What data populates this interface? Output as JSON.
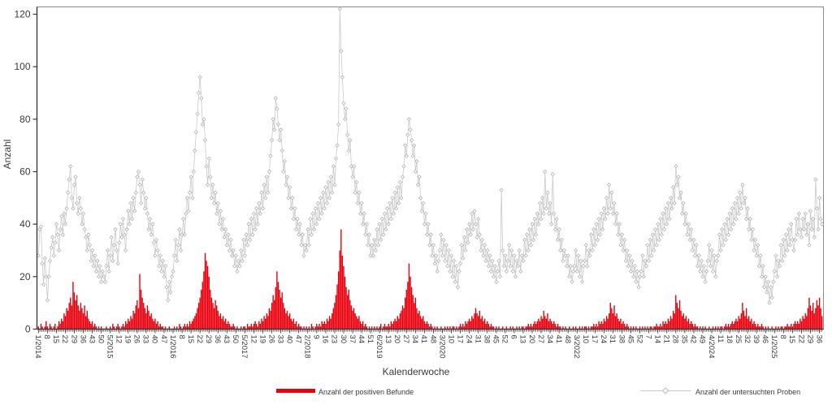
{
  "y_axis": {
    "label": "Anzahl",
    "ticks": [
      0,
      20,
      40,
      60,
      80,
      100,
      120
    ]
  },
  "x_axis": {
    "label": "Kalenderwoche",
    "label_every_n_weeks": 7,
    "labels": [
      "1/2014",
      "8",
      "15",
      "22",
      "29",
      "36",
      "43",
      "50",
      "5/2015",
      "12",
      "19",
      "26",
      "33",
      "40",
      "47",
      "1/2016",
      "8",
      "15",
      "22",
      "29",
      "36",
      "43",
      "50",
      "5/2017",
      "12",
      "19",
      "26",
      "33",
      "40",
      "47",
      "2/2018",
      "9",
      "16",
      "23",
      "30",
      "37",
      "44",
      "51",
      "6/2019",
      "13",
      "20",
      "27",
      "34",
      "41",
      "48",
      "3/2020",
      "10",
      "17",
      "24",
      "31",
      "38",
      "45",
      "52",
      "6",
      "13",
      "20",
      "27",
      "34",
      "41",
      "48",
      "3/2022",
      "10",
      "17",
      "24",
      "31",
      "38",
      "45",
      "52",
      "7",
      "14",
      "21",
      "28",
      "35",
      "42",
      "49",
      "4/2024",
      "11",
      "18",
      "25",
      "32",
      "39",
      "46",
      "1/2025",
      "8",
      "15",
      "22",
      "29",
      "36"
    ]
  },
  "legend": {
    "positive": {
      "label": "Anzahl der positiven Befunde"
    },
    "samples": {
      "label": "Anzahl der untersuchten Proben"
    }
  },
  "colors": {
    "bar": "#e8000d",
    "line": "#c9c9c9",
    "marker_stroke": "#ababab",
    "marker_fill": "#ffffff",
    "axis": "#3a3a3a",
    "frame": "#8a8a8a",
    "text": "#3a3a3a"
  },
  "chart_data": {
    "type": "bar+line",
    "x_unit": "Kalenderwoche (weekly), 1/2014 to 38/2025",
    "n_weeks": 612,
    "ylim": [
      0,
      123
    ],
    "grid": false,
    "legend_position": "bottom",
    "series": [
      {
        "name": "Anzahl der positiven Befunde",
        "type": "bar",
        "color": "#e8000d",
        "values": [
          1,
          0,
          2,
          1,
          0,
          1,
          3,
          1,
          0,
          2,
          1,
          0,
          1,
          2,
          0,
          1,
          3,
          2,
          4,
          3,
          6,
          5,
          8,
          7,
          10,
          12,
          9,
          18,
          14,
          11,
          13,
          9,
          7,
          10,
          8,
          6,
          9,
          5,
          7,
          4,
          3,
          2,
          3,
          1,
          2,
          1,
          0,
          1,
          0,
          1,
          0,
          0,
          0,
          1,
          0,
          0,
          1,
          0,
          2,
          1,
          0,
          1,
          2,
          1,
          0,
          1,
          2,
          1,
          3,
          2,
          4,
          3,
          5,
          4,
          7,
          6,
          9,
          11,
          8,
          21,
          15,
          12,
          10,
          8,
          6,
          9,
          7,
          5,
          6,
          4,
          3,
          4,
          2,
          3,
          1,
          2,
          1,
          1,
          0,
          1,
          0,
          0,
          1,
          0,
          0,
          0,
          1,
          0,
          1,
          0,
          2,
          1,
          0,
          1,
          2,
          1,
          2,
          1,
          3,
          2,
          3,
          4,
          5,
          6,
          8,
          10,
          12,
          15,
          18,
          22,
          29,
          26,
          24,
          20,
          15,
          12,
          10,
          8,
          11,
          9,
          7,
          5,
          6,
          4,
          5,
          3,
          4,
          2,
          3,
          2,
          1,
          1,
          2,
          1,
          0,
          1,
          0,
          0,
          1,
          0,
          1,
          1,
          0,
          2,
          1,
          1,
          2,
          1,
          2,
          3,
          2,
          1,
          3,
          2,
          4,
          3,
          5,
          4,
          6,
          5,
          8,
          7,
          10,
          13,
          11,
          16,
          22,
          18,
          15,
          12,
          14,
          10,
          8,
          6,
          7,
          5,
          6,
          4,
          3,
          4,
          2,
          3,
          1,
          2,
          1,
          1,
          0,
          1,
          0,
          1,
          0,
          1,
          0,
          2,
          1,
          0,
          1,
          2,
          1,
          2,
          1,
          3,
          2,
          3,
          2,
          4,
          3,
          5,
          4,
          6,
          8,
          10,
          13,
          17,
          22,
          30,
          38,
          28,
          24,
          20,
          16,
          13,
          15,
          11,
          9,
          7,
          8,
          6,
          5,
          4,
          5,
          3,
          2,
          3,
          1,
          2,
          1,
          0,
          1,
          0,
          1,
          0,
          1,
          0,
          1,
          0,
          1,
          2,
          0,
          1,
          2,
          1,
          1,
          2,
          1,
          3,
          2,
          3,
          4,
          3,
          5,
          4,
          6,
          7,
          9,
          8,
          12,
          15,
          18,
          25,
          20,
          16,
          13,
          10,
          12,
          8,
          6,
          7,
          5,
          4,
          5,
          3,
          2,
          3,
          2,
          1,
          2,
          1,
          0,
          1,
          0,
          1,
          0,
          0,
          1,
          0,
          0,
          1,
          0,
          1,
          0,
          1,
          0,
          1,
          1,
          0,
          1,
          0,
          1,
          2,
          1,
          2,
          1,
          3,
          2,
          3,
          4,
          3,
          5,
          4,
          6,
          8,
          6,
          5,
          7,
          4,
          5,
          3,
          4,
          2,
          3,
          2,
          1,
          2,
          1,
          1,
          0,
          1,
          0,
          1,
          0,
          0,
          1,
          0,
          0,
          1,
          0,
          0,
          1,
          0,
          1,
          0,
          0,
          1,
          0,
          1,
          0,
          1,
          1,
          0,
          1,
          1,
          2,
          1,
          2,
          1,
          2,
          3,
          2,
          3,
          4,
          3,
          5,
          4,
          7,
          5,
          4,
          6,
          3,
          4,
          3,
          2,
          3,
          2,
          1,
          2,
          1,
          1,
          0,
          1,
          0,
          1,
          0,
          0,
          1,
          0,
          0,
          1,
          0,
          1,
          0,
          0,
          1,
          0,
          1,
          0,
          1,
          1,
          0,
          1,
          0,
          1,
          1,
          2,
          1,
          2,
          1,
          3,
          2,
          3,
          2,
          4,
          3,
          5,
          4,
          6,
          10,
          8,
          6,
          9,
          5,
          6,
          4,
          3,
          4,
          2,
          3,
          2,
          1,
          2,
          1,
          0,
          1,
          0,
          1,
          0,
          1,
          0,
          0,
          1,
          0,
          1,
          0,
          1,
          0,
          1,
          0,
          1,
          1,
          0,
          1,
          1,
          2,
          1,
          1,
          2,
          1,
          3,
          2,
          3,
          2,
          4,
          3,
          5,
          4,
          7,
          6,
          13,
          10,
          8,
          11,
          7,
          5,
          6,
          4,
          5,
          3,
          4,
          2,
          3,
          2,
          1,
          2,
          1,
          1,
          0,
          1,
          0,
          1,
          0,
          1,
          0,
          0,
          1,
          0,
          0,
          1,
          0,
          1,
          0,
          1,
          0,
          1,
          1,
          0,
          1,
          2,
          1,
          2,
          1,
          2,
          3,
          2,
          3,
          4,
          3,
          5,
          4,
          6,
          10,
          7,
          5,
          8,
          4,
          5,
          3,
          4,
          2,
          3,
          2,
          1,
          2,
          1,
          1,
          2,
          1,
          0,
          1,
          0,
          1,
          0,
          0,
          1,
          0,
          0,
          1,
          0,
          1,
          0,
          1,
          1,
          0,
          1,
          1,
          2,
          1,
          1,
          2,
          1,
          2,
          3,
          2,
          3,
          2,
          4,
          3,
          5,
          4,
          6,
          5,
          8,
          12,
          9,
          7,
          10,
          6,
          8,
          11,
          9,
          12,
          8,
          5
        ]
      },
      {
        "name": "Anzahl der untersuchten Proben",
        "type": "line",
        "marker": "diamond",
        "color": "#c9c9c9",
        "values": [
          28,
          38,
          39,
          25,
          17,
          27,
          20,
          11,
          20,
          26,
          31,
          35,
          28,
          33,
          40,
          36,
          30,
          38,
          43,
          36,
          44,
          40,
          46,
          52,
          57,
          62,
          50,
          46,
          55,
          58,
          48,
          44,
          50,
          46,
          40,
          44,
          38,
          35,
          30,
          36,
          32,
          26,
          30,
          24,
          28,
          22,
          26,
          20,
          24,
          18,
          22,
          20,
          18,
          24,
          30,
          22,
          28,
          35,
          26,
          32,
          38,
          30,
          25,
          33,
          40,
          35,
          42,
          36,
          30,
          38,
          45,
          40,
          48,
          42,
          50,
          45,
          52,
          58,
          60,
          55,
          48,
          57,
          52,
          46,
          50,
          44,
          38,
          42,
          36,
          40,
          33,
          28,
          34,
          30,
          24,
          28,
          22,
          26,
          20,
          24,
          16,
          11,
          18,
          14,
          20,
          22,
          28,
          34,
          26,
          32,
          38,
          30,
          36,
          42,
          36,
          44,
          50,
          45,
          52,
          58,
          50,
          60,
          68,
          75,
          82,
          90,
          96,
          88,
          78,
          80,
          72,
          62,
          55,
          65,
          58,
          50,
          55,
          48,
          52,
          44,
          48,
          40,
          45,
          38,
          42,
          35,
          38,
          32,
          36,
          30,
          34,
          28,
          30,
          24,
          28,
          22,
          26,
          24,
          30,
          26,
          34,
          28,
          36,
          32,
          40,
          34,
          42,
          36,
          44,
          38,
          46,
          40,
          48,
          44,
          52,
          46,
          55,
          50,
          58,
          52,
          60,
          66,
          72,
          80,
          76,
          88,
          84,
          78,
          72,
          76,
          68,
          60,
          64,
          55,
          58,
          50,
          54,
          46,
          50,
          42,
          46,
          38,
          42,
          36,
          40,
          32,
          36,
          28,
          32,
          30,
          38,
          32,
          42,
          36,
          44,
          38,
          46,
          40,
          48,
          42,
          50,
          44,
          52,
          46,
          54,
          48,
          56,
          50,
          58,
          52,
          62,
          55,
          65,
          70,
          78,
          122,
          106,
          96,
          86,
          80,
          84,
          74,
          68,
          72,
          62,
          58,
          62,
          52,
          56,
          48,
          52,
          44,
          48,
          40,
          44,
          36,
          40,
          32,
          36,
          28,
          32,
          28,
          34,
          30,
          38,
          32,
          40,
          34,
          42,
          36,
          44,
          38,
          46,
          40,
          48,
          42,
          50,
          44,
          52,
          46,
          54,
          48,
          56,
          50,
          58,
          62,
          70,
          66,
          74,
          80,
          76,
          72,
          66,
          70,
          60,
          64,
          55,
          58,
          50,
          45,
          48,
          40,
          44,
          36,
          40,
          32,
          36,
          28,
          32,
          25,
          28,
          22,
          26,
          30,
          36,
          28,
          34,
          26,
          32,
          24,
          30,
          22,
          28,
          20,
          26,
          18,
          24,
          16,
          22,
          25,
          32,
          27,
          35,
          30,
          38,
          33,
          40,
          36,
          44,
          38,
          45,
          40,
          35,
          42,
          36,
          30,
          34,
          28,
          32,
          26,
          30,
          24,
          28,
          22,
          26,
          20,
          24,
          18,
          22,
          26,
          20,
          53,
          30,
          24,
          28,
          22,
          26,
          32,
          24,
          30,
          22,
          28,
          20,
          26,
          24,
          30,
          22,
          28,
          26,
          34,
          28,
          36,
          30,
          38,
          32,
          40,
          34,
          42,
          36,
          44,
          40,
          48,
          42,
          50,
          44,
          60,
          46,
          52,
          44,
          48,
          40,
          59,
          44,
          38,
          42,
          34,
          38,
          30,
          34,
          26,
          30,
          28,
          24,
          28,
          20,
          24,
          18,
          22,
          24,
          30,
          22,
          28,
          20,
          26,
          18,
          24,
          26,
          32,
          24,
          30,
          28,
          36,
          30,
          38,
          32,
          40,
          34,
          42,
          36,
          44,
          38,
          46,
          42,
          50,
          44,
          55,
          46,
          52,
          44,
          48,
          40,
          44,
          36,
          40,
          32,
          36,
          30,
          34,
          26,
          30,
          24,
          28,
          22,
          26,
          20,
          24,
          18,
          22,
          16,
          20,
          22,
          28,
          20,
          26,
          24,
          32,
          26,
          34,
          28,
          36,
          30,
          38,
          32,
          40,
          34,
          42,
          36,
          44,
          38,
          46,
          40,
          48,
          42,
          50,
          46,
          54,
          48,
          62,
          55,
          58,
          50,
          52,
          44,
          48,
          40,
          44,
          36,
          40,
          34,
          38,
          30,
          34,
          28,
          32,
          24,
          28,
          22,
          26,
          20,
          24,
          18,
          22,
          26,
          32,
          24,
          30,
          22,
          28,
          20,
          26,
          28,
          36,
          30,
          38,
          32,
          40,
          34,
          42,
          36,
          44,
          38,
          46,
          40,
          48,
          42,
          50,
          44,
          52,
          46,
          55,
          48,
          50,
          42,
          46,
          38,
          42,
          34,
          38,
          30,
          34,
          28,
          32,
          24,
          28,
          20,
          24,
          16,
          20,
          14,
          18,
          10,
          16,
          12,
          18,
          22,
          28,
          20,
          26,
          24,
          32,
          26,
          34,
          28,
          36,
          30,
          38,
          32,
          40,
          34,
          30,
          34,
          42,
          36,
          44,
          38,
          35,
          42,
          38,
          44,
          36,
          40,
          32,
          45,
          38,
          42,
          35,
          57,
          46,
          38,
          50,
          42,
          40
        ]
      }
    ]
  }
}
